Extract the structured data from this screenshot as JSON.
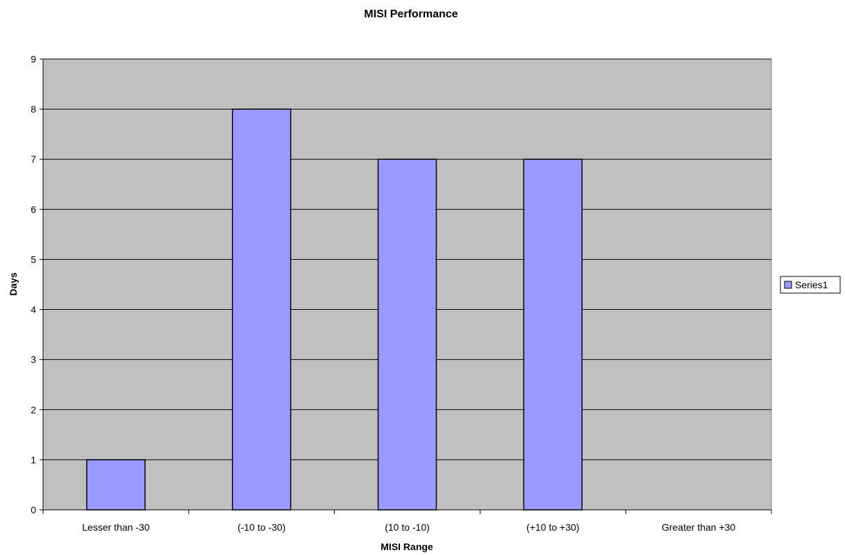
{
  "chart_data": {
    "type": "bar",
    "title": "MISI Performance",
    "xlabel": "MISI Range",
    "ylabel": "Days",
    "categories": [
      "Lesser than -30",
      "(-10 to -30)",
      "(10 to -10)",
      "(+10 to +30)",
      "Greater than +30"
    ],
    "series": [
      {
        "name": "Series1",
        "values": [
          1,
          8,
          7,
          7,
          0
        ],
        "color": "#9999ff"
      }
    ],
    "ylim": [
      0,
      9
    ],
    "yticks": [
      0,
      1,
      2,
      3,
      4,
      5,
      6,
      7,
      8,
      9
    ],
    "grid": true,
    "legend_position": "right",
    "plot_background": "#c0c0c0"
  }
}
